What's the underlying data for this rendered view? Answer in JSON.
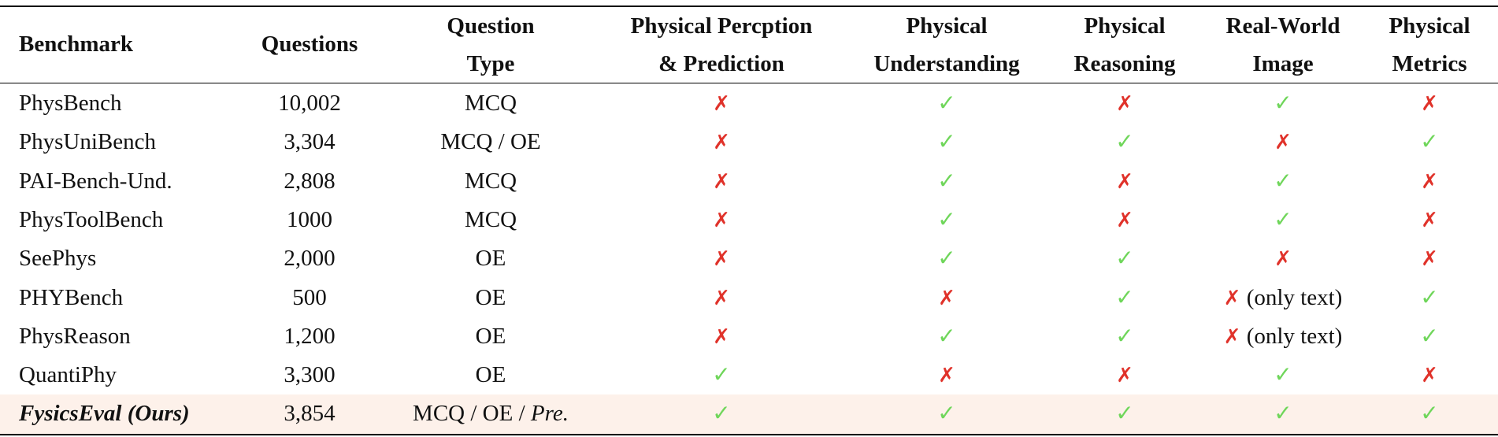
{
  "table": {
    "header": [
      [
        "Benchmark"
      ],
      [
        "Questions"
      ],
      [
        "Question",
        "Type"
      ],
      [
        "Physical Percption",
        "& Prediction"
      ],
      [
        "Physical",
        "Understanding"
      ],
      [
        "Physical",
        "Reasoning"
      ],
      [
        "Real-World",
        "Image"
      ],
      [
        "Physical",
        "Metrics"
      ]
    ],
    "rows": [
      [
        [
          "PhysBench"
        ],
        [
          "10,002"
        ],
        [
          "MCQ"
        ],
        [
          "✗"
        ],
        [
          "✓"
        ],
        [
          "✗"
        ],
        [
          "✓"
        ],
        [
          "✗"
        ]
      ],
      [
        [
          "PhysUniBench"
        ],
        [
          "3,304"
        ],
        [
          "MCQ / OE"
        ],
        [
          "✗"
        ],
        [
          "✓"
        ],
        [
          "✓"
        ],
        [
          "✗"
        ],
        [
          "✓"
        ]
      ],
      [
        [
          "PAI-Bench-Und."
        ],
        [
          "2,808"
        ],
        [
          "MCQ"
        ],
        [
          "✗"
        ],
        [
          "✓"
        ],
        [
          "✗"
        ],
        [
          "✓"
        ],
        [
          "✗"
        ]
      ],
      [
        [
          "PhysToolBench"
        ],
        [
          "1000"
        ],
        [
          "MCQ"
        ],
        [
          "✗"
        ],
        [
          "✓"
        ],
        [
          "✗"
        ],
        [
          "✓"
        ],
        [
          "✗"
        ]
      ],
      [
        [
          "SeePhys"
        ],
        [
          "2,000"
        ],
        [
          "OE"
        ],
        [
          "✗"
        ],
        [
          "✓"
        ],
        [
          "✓"
        ],
        [
          "✗"
        ],
        [
          "✗"
        ]
      ],
      [
        [
          "PHYBench"
        ],
        [
          "500"
        ],
        [
          "OE"
        ],
        [
          "✗"
        ],
        [
          "✗"
        ],
        [
          "✓"
        ],
        [
          "✗",
          "(only text)"
        ],
        [
          "✓"
        ]
      ],
      [
        [
          "PhysReason"
        ],
        [
          "1,200"
        ],
        [
          "OE"
        ],
        [
          "✗"
        ],
        [
          "✓"
        ],
        [
          "✓"
        ],
        [
          "✗",
          "(only text)"
        ],
        [
          "✓"
        ]
      ],
      [
        [
          "QuantiPhy"
        ],
        [
          "3,300"
        ],
        [
          "OE"
        ],
        [
          "✓"
        ],
        [
          "✗"
        ],
        [
          "✗"
        ],
        [
          "✓"
        ],
        [
          "✗"
        ]
      ],
      [
        [
          "FysicsEval (Ours)"
        ],
        [
          "3,854"
        ],
        [
          "MCQ / OE /",
          "Pre."
        ],
        [
          "✓"
        ],
        [
          "✓"
        ],
        [
          "✓"
        ],
        [
          "✓"
        ],
        [
          "✓"
        ]
      ]
    ]
  }
}
